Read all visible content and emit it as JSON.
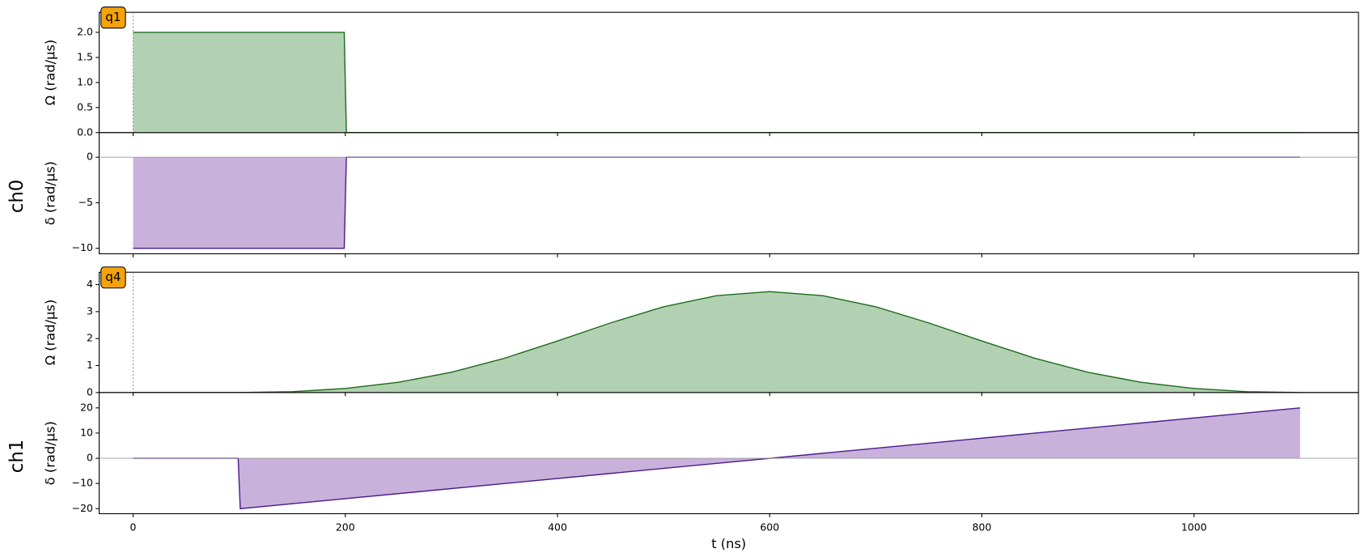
{
  "chart_data": [
    {
      "type": "area",
      "channel": "ch0",
      "target": "q1",
      "ylabel": "Ω (rad/µs)",
      "x": [
        0,
        199,
        201,
        1100
      ],
      "values": [
        2,
        2,
        0,
        0
      ],
      "color": "#1b6b1b",
      "fill_color": "#b2d1b2",
      "xlim": [
        -32,
        1155
      ],
      "xticks": [
        0,
        200,
        400,
        600,
        800,
        1000
      ],
      "ylim": [
        0,
        2.4
      ],
      "yticks": [
        {
          "value": 0,
          "label": "0.0"
        },
        0.5,
        {
          "value": 1,
          "label": "1.0"
        },
        1.5,
        {
          "value": 2,
          "label": "2.0"
        }
      ]
    },
    {
      "type": "area",
      "ylabel": "δ (rad/µs)",
      "x": [
        0,
        199,
        201,
        1100
      ],
      "values": [
        -10,
        -10,
        0,
        0
      ],
      "color": "#4b1a8c",
      "fill_color": "#c8b1da",
      "xlim": [
        -32,
        1155
      ],
      "xticks": [
        0,
        200,
        400,
        600,
        800,
        1000
      ],
      "ylim": [
        -10.6,
        2.7
      ],
      "yticks": [
        {
          "value": -10,
          "label": "−10"
        },
        {
          "value": -5,
          "label": "−5"
        },
        0
      ]
    },
    {
      "type": "area",
      "channel": "ch1",
      "target": "q4",
      "ylabel": "Ω (rad/µs)",
      "x": [
        0,
        100,
        150,
        200,
        250,
        300,
        350,
        400,
        450,
        500,
        550,
        600,
        650,
        700,
        750,
        800,
        850,
        900,
        950,
        1000,
        1050,
        1100
      ],
      "values": [
        0,
        0,
        0.03,
        0.15,
        0.38,
        0.75,
        1.27,
        1.91,
        2.58,
        3.18,
        3.59,
        3.74,
        3.59,
        3.18,
        2.58,
        1.91,
        1.27,
        0.75,
        0.38,
        0.15,
        0.03,
        0
      ],
      "color": "#1b6b1b",
      "fill_color": "#b2d1b2",
      "xlim": [
        -32,
        1155
      ],
      "xticks": [
        0,
        200,
        400,
        600,
        800,
        1000
      ],
      "ylim": [
        0,
        4.46
      ],
      "yticks": [
        0,
        1,
        2,
        3,
        4
      ]
    },
    {
      "type": "area",
      "ylabel": "δ (rad/µs)",
      "xlabel": "t (ns)",
      "x": [
        0,
        99,
        101,
        1100
      ],
      "values": [
        0,
        0,
        -20,
        20
      ],
      "color": "#4b1a8c",
      "fill_color": "#c8b1da",
      "xlim": [
        -32,
        1155
      ],
      "xticks": [
        0,
        200,
        400,
        600,
        800,
        1000
      ],
      "ylim": [
        -22,
        26.1
      ],
      "yticks": [
        {
          "value": -20,
          "label": "−20"
        },
        {
          "value": -10,
          "label": "−10"
        },
        0,
        10,
        20
      ]
    }
  ]
}
